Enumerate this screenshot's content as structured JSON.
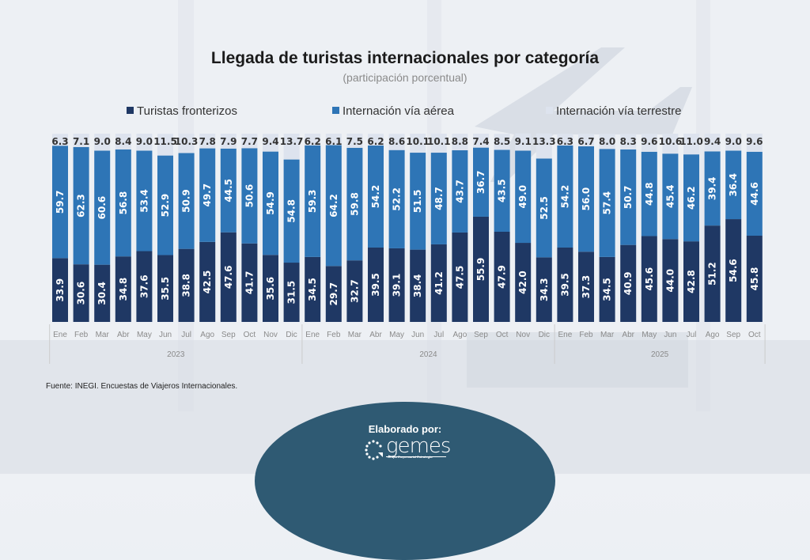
{
  "header": {
    "title": "Llegada de turistas internacionales por categoría",
    "subtitle": "(participación porcentual)"
  },
  "legend": [
    {
      "label": "Turistas fronterizos",
      "color": "#1f3864"
    },
    {
      "label": "Internación vía aérea",
      "color": "#2e75b6"
    },
    {
      "label": "Internación vía terrestre",
      "color": "#dde3ee"
    }
  ],
  "footer": {
    "source": "Fuente: INEGI. Encuestas de Viajeros Internacionales.",
    "made_by": "Elaborado por:",
    "logo_text": "gemes",
    "logo_sub": "Grupo Empresarial Estrategia"
  },
  "chart_data": {
    "type": "bar",
    "stacked": true,
    "title": "Llegada de turistas internacionales por categoría",
    "subtitle": "(participación porcentual)",
    "xlabel": "",
    "ylabel": "",
    "ylim": [
      0,
      100
    ],
    "legend_position": "top",
    "grid": false,
    "categories": [
      "Ene",
      "Feb",
      "Mar",
      "Abr",
      "May",
      "Jun",
      "Jul",
      "Ago",
      "Sep",
      "Oct",
      "Nov",
      "Dic",
      "Ene",
      "Feb",
      "Mar",
      "Abr",
      "May",
      "Jun",
      "Jul",
      "Ago",
      "Sep",
      "Oct",
      "Nov",
      "Dic",
      "Ene",
      "Feb",
      "Mar",
      "Abr",
      "May",
      "Jun",
      "Jul",
      "Ago",
      "Sep",
      "Oct"
    ],
    "groups": [
      {
        "label": "2023",
        "count": 12
      },
      {
        "label": "2024",
        "count": 12
      },
      {
        "label": "2025",
        "count": 10
      }
    ],
    "series": [
      {
        "name": "Turistas fronterizos",
        "color": "#1f3864",
        "values": [
          33.9,
          30.6,
          30.4,
          34.8,
          37.6,
          35.5,
          38.8,
          42.5,
          47.6,
          41.7,
          35.6,
          31.5,
          34.5,
          29.7,
          32.7,
          39.5,
          39.1,
          38.4,
          41.2,
          47.5,
          55.9,
          47.9,
          42.0,
          34.3,
          39.5,
          37.3,
          34.5,
          40.9,
          45.6,
          44.0,
          42.8,
          51.2,
          54.6,
          45.8
        ]
      },
      {
        "name": "Internación vía aérea",
        "color": "#2e75b6",
        "values": [
          59.7,
          62.3,
          60.6,
          56.8,
          53.4,
          52.9,
          50.9,
          49.7,
          44.5,
          50.6,
          54.9,
          54.8,
          59.3,
          64.2,
          59.8,
          54.2,
          52.2,
          51.5,
          48.7,
          43.7,
          36.7,
          43.5,
          49.0,
          52.5,
          54.2,
          56.0,
          57.4,
          50.7,
          44.8,
          45.4,
          46.2,
          39.4,
          36.4,
          44.6
        ]
      },
      {
        "name": "Internación vía terrestre",
        "color": "#dde3ee",
        "values": [
          6.3,
          7.1,
          9.0,
          8.4,
          9.0,
          11.5,
          10.3,
          7.8,
          7.9,
          7.7,
          9.4,
          13.7,
          6.2,
          6.1,
          7.5,
          6.2,
          8.6,
          10.1,
          10.1,
          8.8,
          7.4,
          8.5,
          9.1,
          13.3,
          6.3,
          6.7,
          8.0,
          8.3,
          9.6,
          10.6,
          11.0,
          9.4,
          9.0,
          9.6
        ]
      }
    ]
  }
}
